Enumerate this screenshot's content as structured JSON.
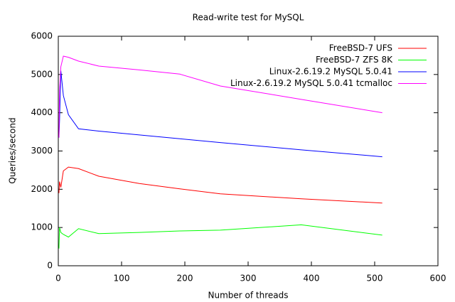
{
  "chart_data": {
    "type": "line",
    "title": "Read-write test for MySQL",
    "xlabel": "Number of threads",
    "ylabel": "Queries/second",
    "x": [
      1,
      2,
      4,
      8,
      16,
      32,
      64,
      128,
      192,
      256,
      384,
      512
    ],
    "series": [
      {
        "name": "FreeBSD-7 UFS",
        "color": "#ff0000",
        "values": [
          1900,
          2200,
          2050,
          2480,
          2580,
          2540,
          2340,
          2150,
          2010,
          1880,
          1750,
          1640
        ]
      },
      {
        "name": "FreeBSD-7 ZFS 8K",
        "color": "#00ff00",
        "values": [
          450,
          1000,
          870,
          820,
          750,
          970,
          840,
          870,
          910,
          930,
          1070,
          800
        ]
      },
      {
        "name": "Linux-2.6.19.2 MySQL 5.0.41",
        "color": "#0000ff",
        "values": [
          3350,
          3800,
          5100,
          4450,
          3950,
          3580,
          3520,
          3420,
          3320,
          3220,
          3030,
          2850
        ]
      },
      {
        "name": "Linux-2.6.19.2 MySQL 5.0.41 tcmalloc",
        "color": "#ff00ff",
        "values": [
          3350,
          4600,
          5200,
          5480,
          5450,
          5350,
          5220,
          5120,
          5010,
          4700,
          4350,
          4000
        ]
      }
    ],
    "xlim": [
      0,
      600
    ],
    "xticks": [
      0,
      100,
      200,
      300,
      400,
      500,
      600
    ],
    "ylim": [
      0,
      6000
    ],
    "yticks": [
      0,
      1000,
      2000,
      3000,
      4000,
      5000,
      6000
    ],
    "legend": "top-right",
    "grid": false
  }
}
